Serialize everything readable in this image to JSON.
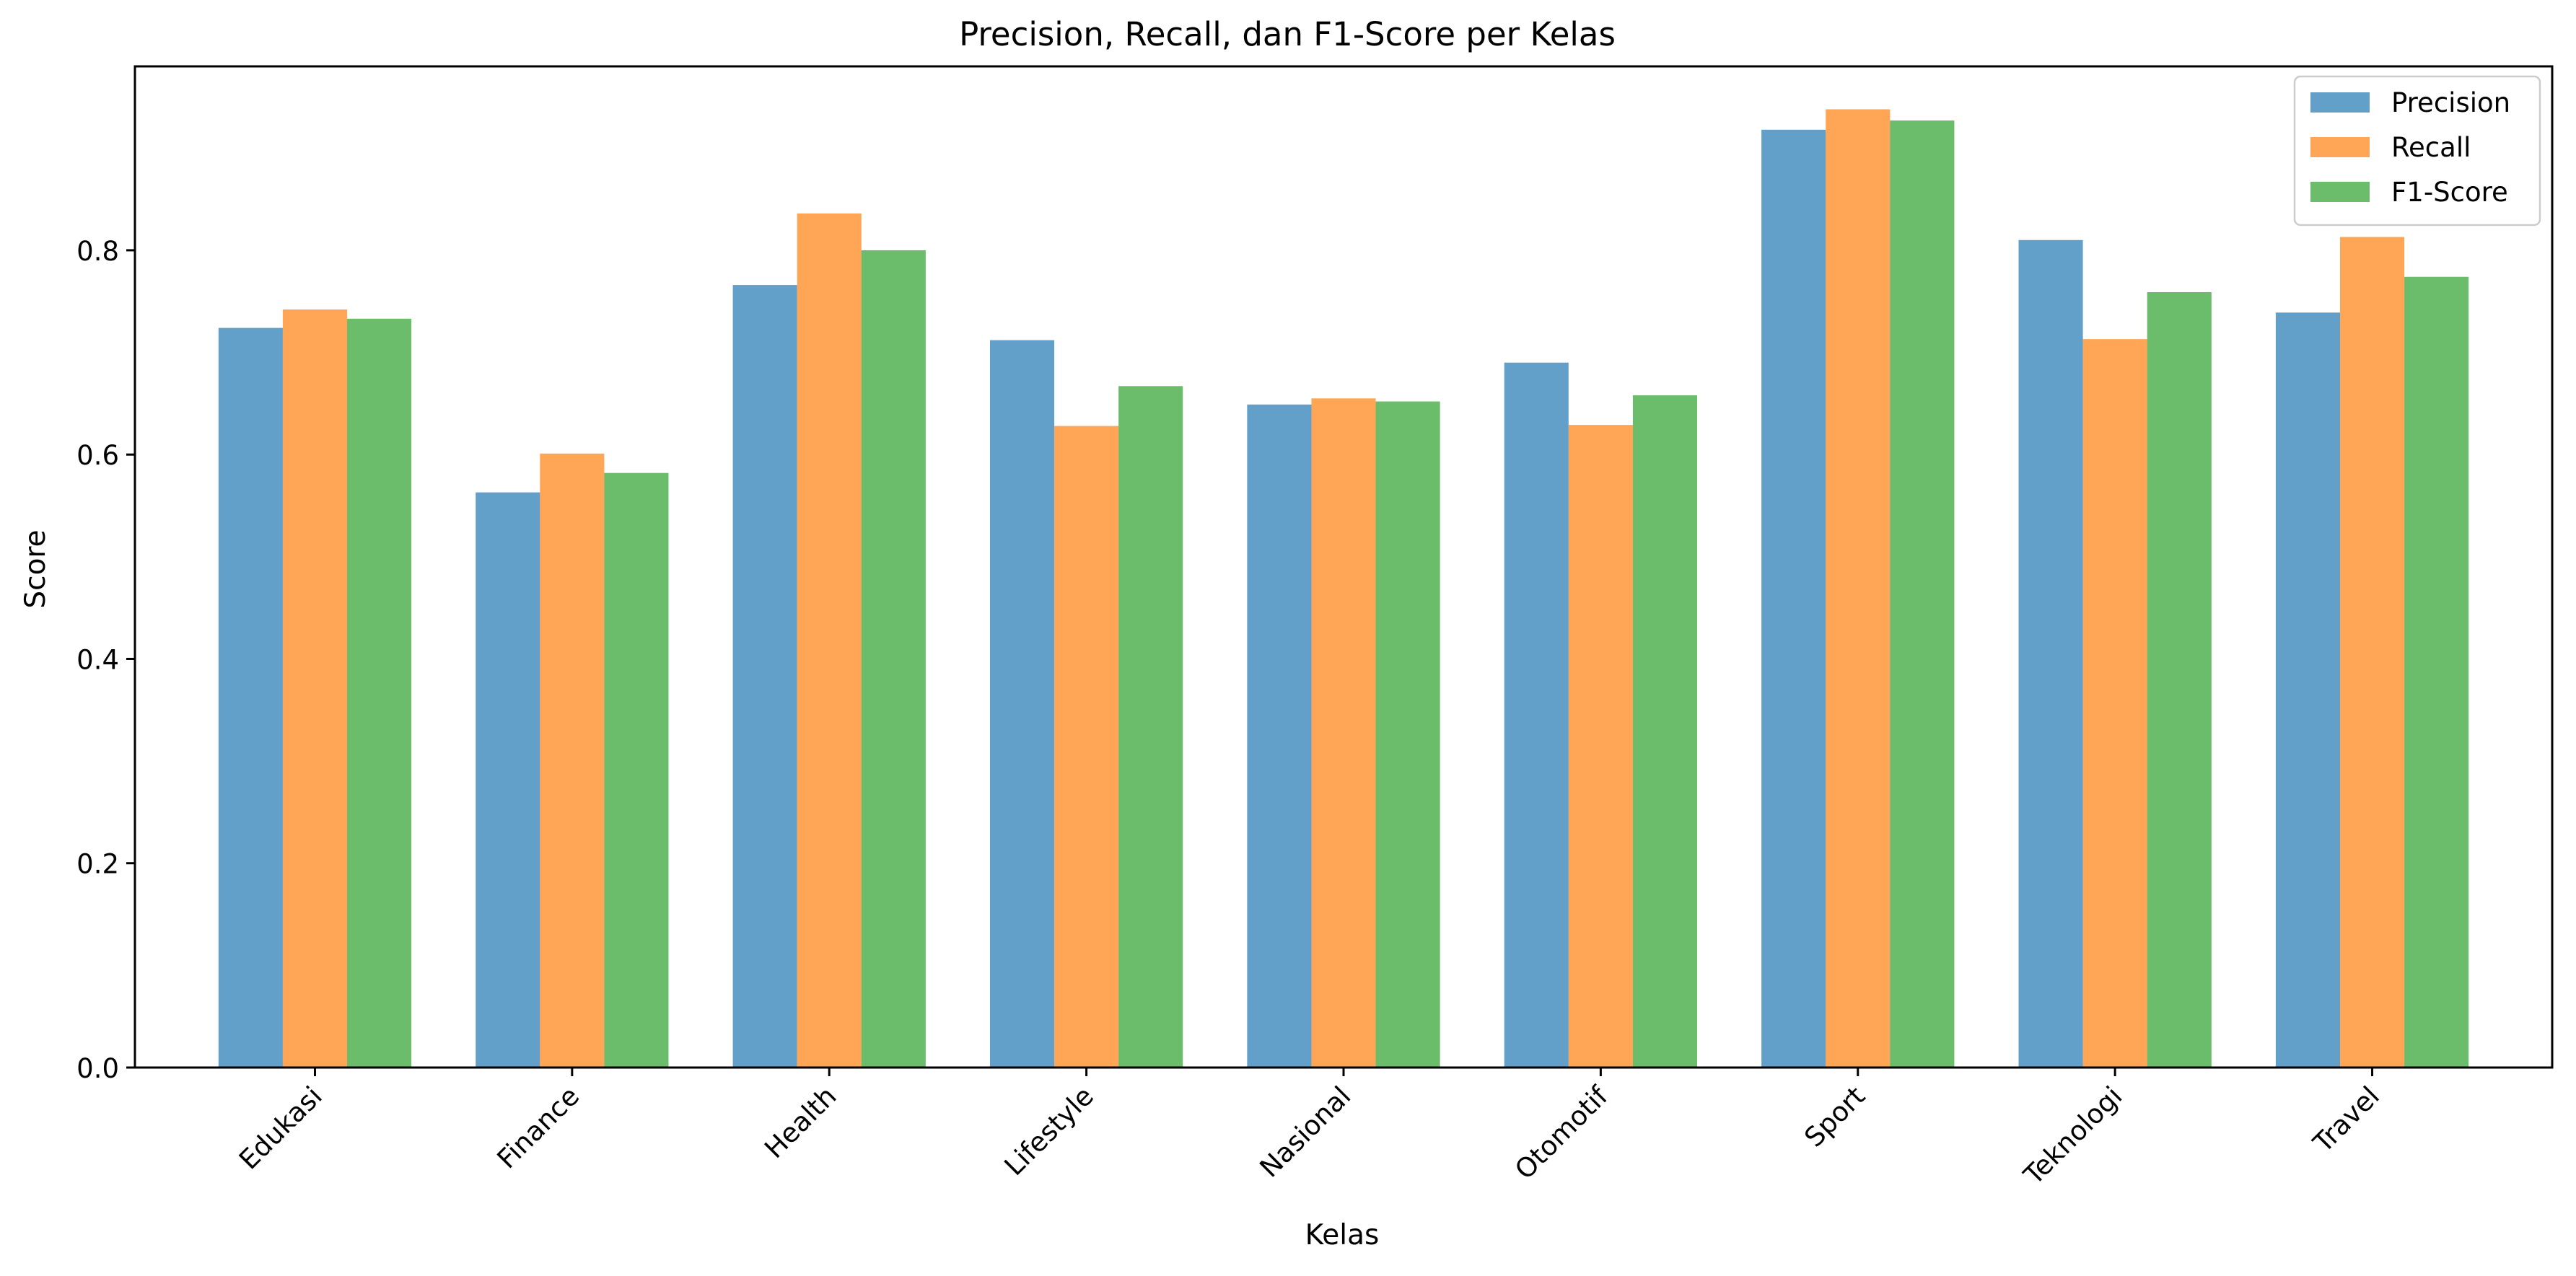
{
  "chart_data": {
    "type": "bar",
    "title": "Precision, Recall, dan F1-Score per Kelas",
    "xlabel": "Kelas",
    "ylabel": "Score",
    "ylim": [
      0,
      0.98
    ],
    "yticks": [
      0.0,
      0.2,
      0.4,
      0.6,
      0.8
    ],
    "ytick_labels": [
      "0.0",
      "0.2",
      "0.4",
      "0.6",
      "0.8"
    ],
    "categories": [
      "Edukasi",
      "Finance",
      "Health",
      "Lifestyle",
      "Nasional",
      "Otomotif",
      "Sport",
      "Teknologi",
      "Travel"
    ],
    "series": [
      {
        "name": "Precision",
        "color": "#1f77b4",
        "values": [
          0.724,
          0.563,
          0.766,
          0.712,
          0.649,
          0.69,
          0.918,
          0.81,
          0.739
        ]
      },
      {
        "name": "Recall",
        "color": "#ff7f0e",
        "values": [
          0.742,
          0.601,
          0.836,
          0.628,
          0.655,
          0.629,
          0.938,
          0.713,
          0.813
        ]
      },
      {
        "name": "F1-Score",
        "color": "#2ca02c",
        "values": [
          0.733,
          0.582,
          0.8,
          0.667,
          0.652,
          0.658,
          0.927,
          0.759,
          0.774
        ]
      }
    ],
    "bar_opacity": 0.7,
    "grid": false,
    "legend_position": "top-right"
  }
}
